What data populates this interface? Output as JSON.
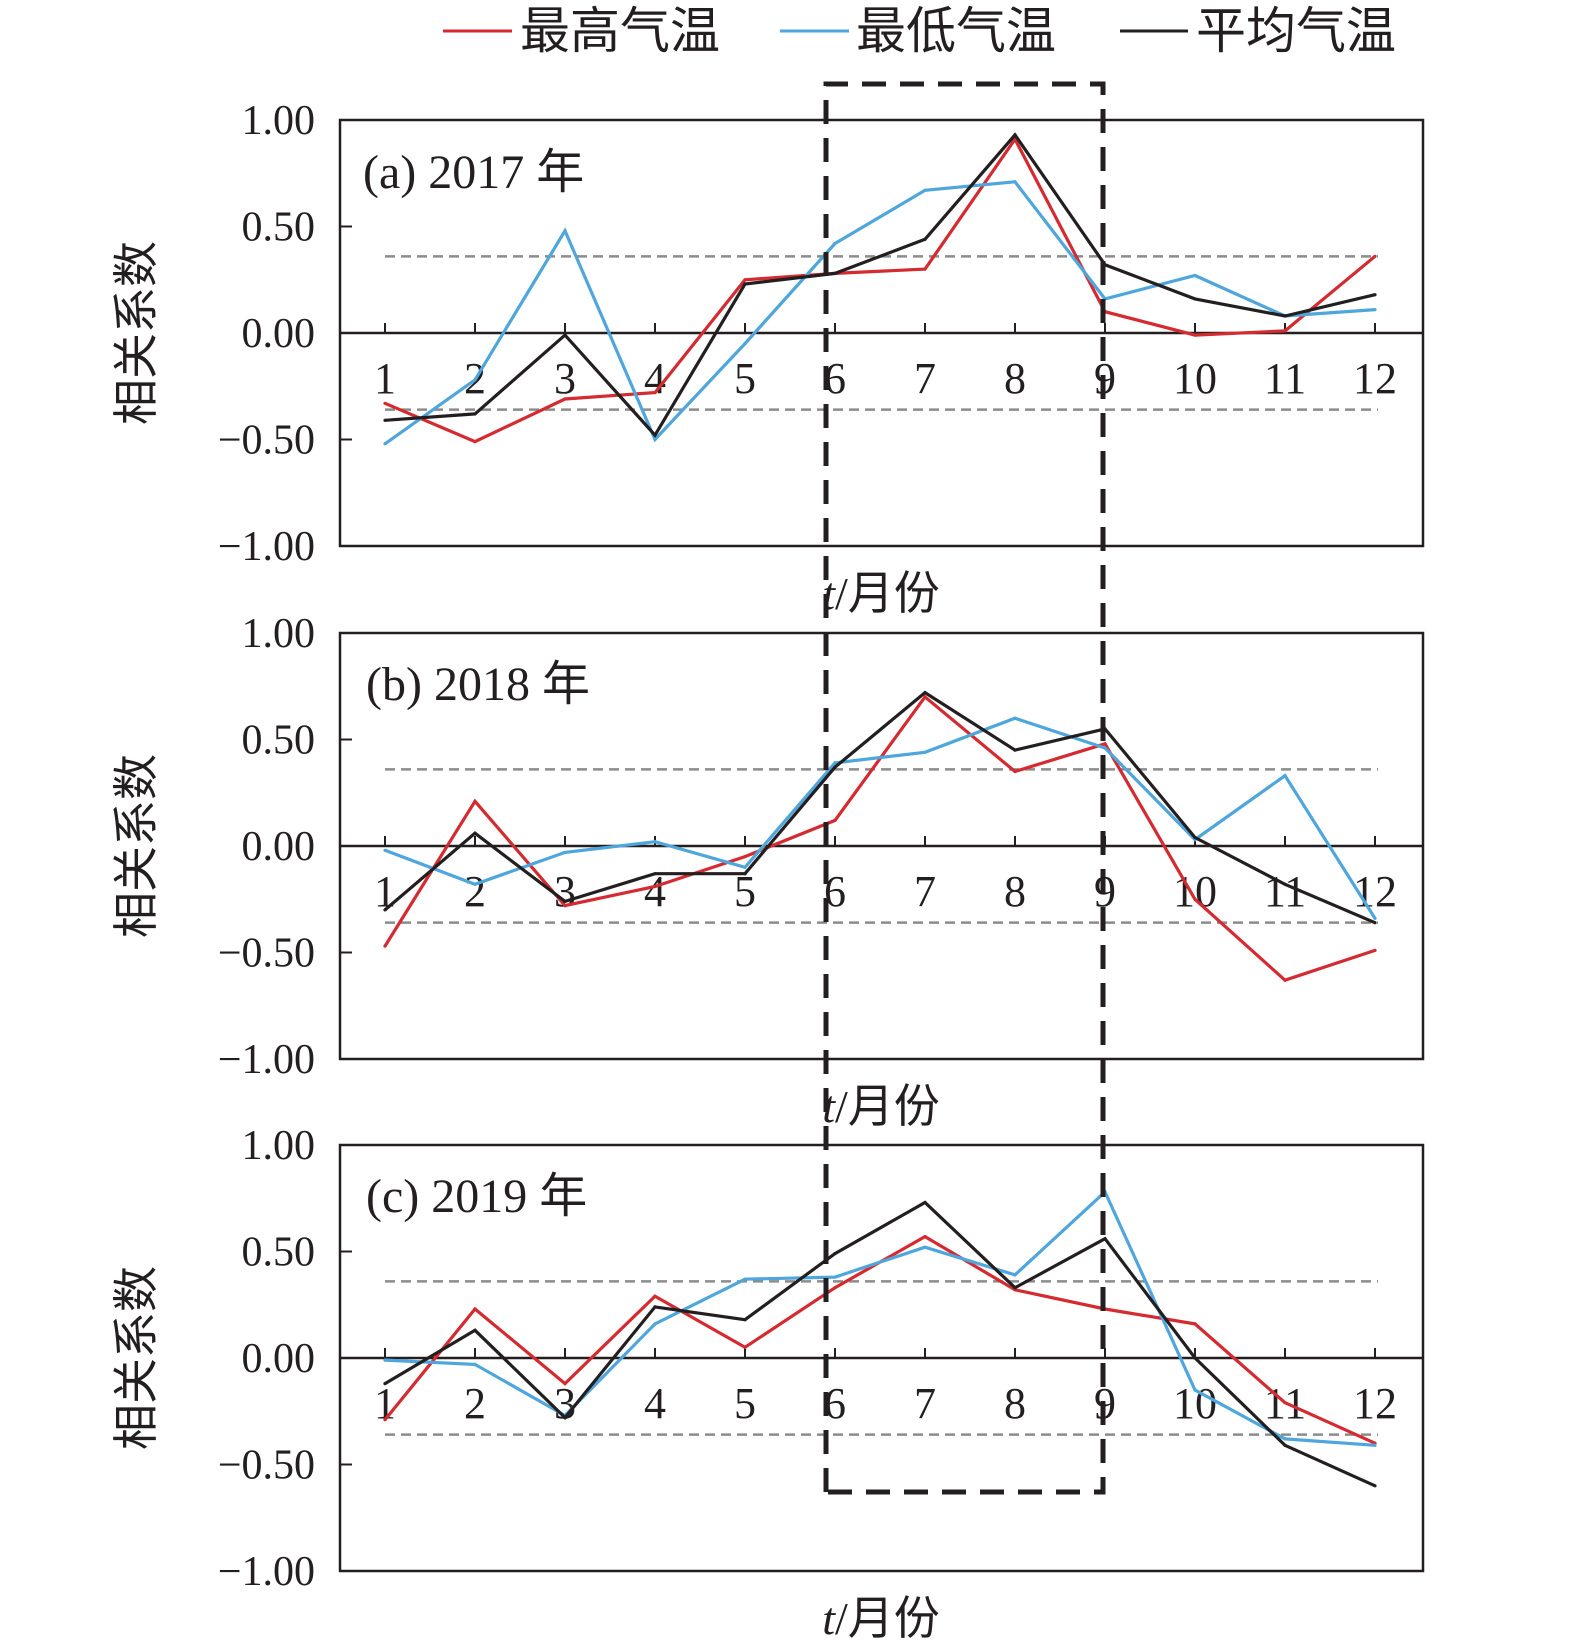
{
  "chart_data": {
    "type": "line",
    "legend": {
      "position": "top",
      "entries": [
        {
          "label": "最高气温",
          "color": "#d42a30"
        },
        {
          "label": "最低气温",
          "color": "#4ea6dc"
        },
        {
          "label": "平均气温",
          "color": "#231f20"
        }
      ]
    },
    "x_categories": [
      "1",
      "2",
      "3",
      "4",
      "5",
      "6",
      "7",
      "8",
      "9",
      "10",
      "11",
      "12"
    ],
    "y_ticks": [
      "1.00",
      "0.50",
      "0.00",
      "−0.50",
      "−1.00"
    ],
    "ylim": [
      -1,
      1
    ],
    "significance_threshold": 0.36,
    "highlight_range": [
      6,
      9
    ],
    "panels": [
      {
        "label": "(a) 2017 年",
        "ylabel": "相关系数",
        "xlabel_italic": "t",
        "xlabel_rest": "/月份",
        "series": [
          {
            "name": "最高气温",
            "values": [
              -0.33,
              -0.51,
              -0.31,
              -0.28,
              0.25,
              0.28,
              0.3,
              0.91,
              0.1,
              -0.01,
              0.01,
              0.36
            ]
          },
          {
            "name": "最低气温",
            "values": [
              -0.52,
              -0.22,
              0.48,
              -0.5,
              -0.05,
              0.42,
              0.67,
              0.71,
              0.16,
              0.27,
              0.08,
              0.11
            ]
          },
          {
            "name": "平均气温",
            "values": [
              -0.41,
              -0.38,
              -0.01,
              -0.48,
              0.23,
              0.28,
              0.44,
              0.93,
              0.32,
              0.16,
              0.08,
              0.18
            ]
          }
        ]
      },
      {
        "label": "(b) 2018 年",
        "ylabel": "相关系数",
        "xlabel_italic": "t",
        "xlabel_rest": "/月份",
        "series": [
          {
            "name": "最高气温",
            "values": [
              -0.47,
              0.21,
              -0.28,
              -0.19,
              -0.05,
              0.12,
              0.7,
              0.35,
              0.48,
              -0.25,
              -0.63,
              -0.49
            ]
          },
          {
            "name": "最低气温",
            "values": [
              -0.02,
              -0.18,
              -0.03,
              0.02,
              -0.1,
              0.39,
              0.44,
              0.6,
              0.46,
              0.03,
              0.33,
              -0.34
            ]
          },
          {
            "name": "平均气温",
            "values": [
              -0.3,
              0.06,
              -0.26,
              -0.13,
              -0.13,
              0.37,
              0.72,
              0.45,
              0.55,
              0.04,
              -0.18,
              -0.36
            ]
          }
        ]
      },
      {
        "label": "(c) 2019 年",
        "ylabel": "相关系数",
        "xlabel_italic": "t",
        "xlabel_rest": "/月份",
        "series": [
          {
            "name": "最高气温",
            "values": [
              -0.29,
              0.23,
              -0.12,
              0.29,
              0.05,
              0.33,
              0.57,
              0.32,
              0.23,
              0.16,
              -0.21,
              -0.4
            ]
          },
          {
            "name": "最低气温",
            "values": [
              -0.01,
              -0.03,
              -0.27,
              0.16,
              0.37,
              0.38,
              0.52,
              0.39,
              0.78,
              -0.15,
              -0.38,
              -0.41
            ]
          },
          {
            "name": "平均气温",
            "values": [
              -0.12,
              0.13,
              -0.28,
              0.24,
              0.18,
              0.49,
              0.73,
              0.33,
              0.56,
              0.0,
              -0.41,
              -0.6
            ]
          }
        ]
      }
    ]
  }
}
